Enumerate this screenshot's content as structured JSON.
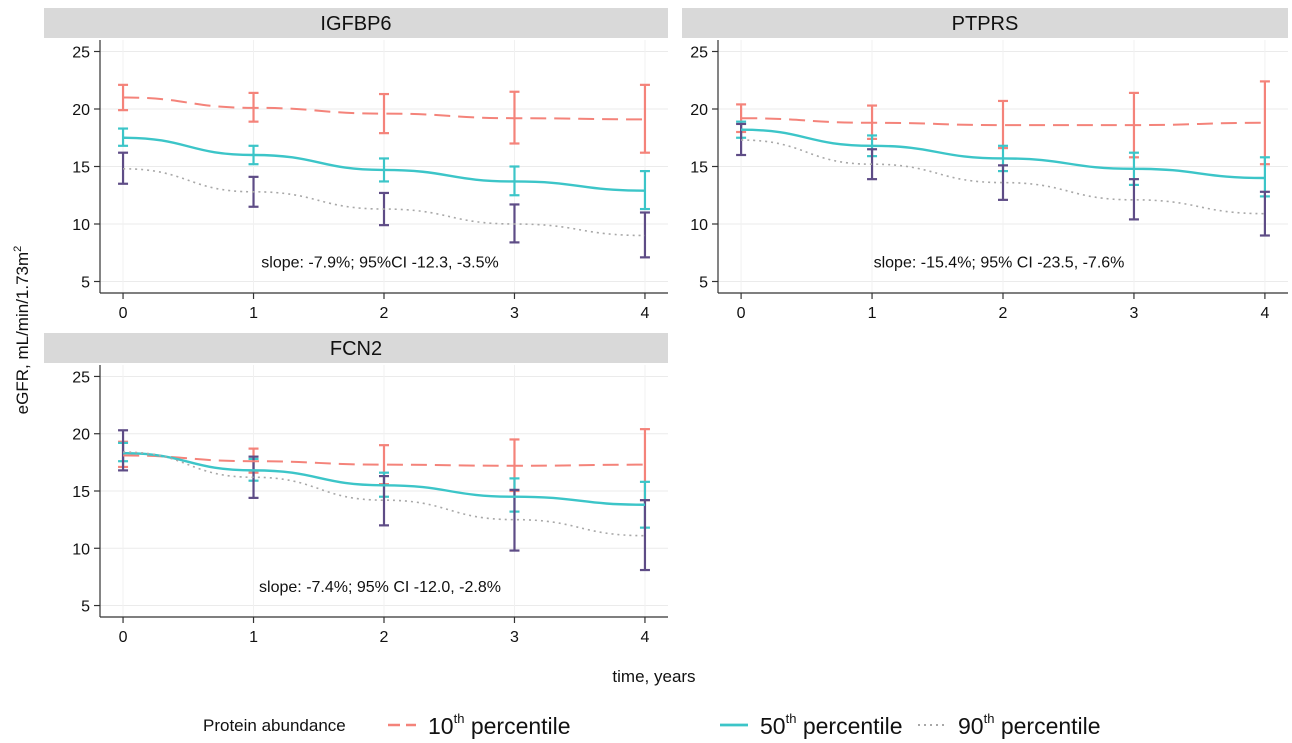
{
  "chart_data": {
    "type": "line",
    "ylabel_main": "eGFR, mL/min/1.73m",
    "ylabel_sup": "2",
    "xlabel": "time, years",
    "x": [
      0,
      1,
      2,
      3,
      4
    ],
    "xticks": [
      "0",
      "1",
      "2",
      "3",
      "4"
    ],
    "yticks": [
      "5",
      "10",
      "15",
      "20",
      "25"
    ],
    "ylim": [
      4,
      26
    ],
    "xlim": [
      -0.1,
      4.1
    ],
    "grid": true,
    "legend": {
      "title": "Protein abundance",
      "placement": "bottom",
      "entries": [
        {
          "num": "10",
          "sup": "th",
          "text": " percentile",
          "color": "#F4837A",
          "style": "dashed"
        },
        {
          "num": "50",
          "sup": "th",
          "text": " percentile",
          "color": "#3CC5C8",
          "style": "solid"
        },
        {
          "num": "90",
          "sup": "th",
          "text": " percentile",
          "color": "#A8A8A8",
          "style": "dotted"
        }
      ]
    },
    "ci_colors": {
      "p10": "#F4837A",
      "p50": "#3CC5C8",
      "p90": "#5E4C86"
    },
    "panels": [
      {
        "title": "IGFBP6",
        "annotation": "slope: -7.9%; 95%CI -12.3, -3.5%",
        "series": [
          {
            "name": "10th percentile",
            "key": "p10",
            "values": [
              21.0,
              20.1,
              19.6,
              19.2,
              19.1
            ],
            "lower": [
              19.9,
              18.9,
              17.9,
              17.0,
              16.2
            ],
            "upper": [
              22.1,
              21.4,
              21.3,
              21.5,
              22.1
            ]
          },
          {
            "name": "50th percentile",
            "key": "p50",
            "values": [
              17.5,
              16.0,
              14.7,
              13.7,
              12.9
            ],
            "lower": [
              16.8,
              15.2,
              13.7,
              12.5,
              11.3
            ],
            "upper": [
              18.3,
              16.8,
              15.7,
              15.0,
              14.6
            ]
          },
          {
            "name": "90th percentile",
            "key": "p90",
            "values": [
              14.8,
              12.8,
              11.3,
              10.0,
              9.0
            ],
            "lower": [
              13.5,
              11.5,
              9.9,
              8.4,
              7.1
            ],
            "upper": [
              16.2,
              14.1,
              12.7,
              11.7,
              11.0
            ]
          }
        ]
      },
      {
        "title": "PTPRS",
        "annotation": "slope: -15.4%; 95% CI -23.5, -7.6%",
        "series": [
          {
            "name": "10th percentile",
            "key": "p10",
            "values": [
              19.2,
              18.8,
              18.6,
              18.6,
              18.8
            ],
            "lower": [
              18.0,
              17.4,
              16.6,
              15.8,
              15.2
            ],
            "upper": [
              20.4,
              20.3,
              20.7,
              21.4,
              22.4
            ]
          },
          {
            "name": "50th percentile",
            "key": "p50",
            "values": [
              18.2,
              16.8,
              15.7,
              14.8,
              14.0
            ],
            "lower": [
              17.5,
              15.9,
              14.6,
              13.4,
              12.4
            ],
            "upper": [
              18.9,
              17.7,
              16.8,
              16.2,
              15.8
            ]
          },
          {
            "name": "90th percentile",
            "key": "p90",
            "values": [
              17.3,
              15.2,
              13.6,
              12.1,
              10.9
            ],
            "lower": [
              16.0,
              13.9,
              12.1,
              10.4,
              9.0
            ],
            "upper": [
              18.7,
              16.5,
              15.1,
              13.9,
              12.8
            ]
          }
        ]
      },
      {
        "title": "FCN2",
        "annotation": "slope: -7.4%; 95% CI -12.0, -2.8%",
        "series": [
          {
            "name": "10th percentile",
            "key": "p10",
            "values": [
              18.1,
              17.6,
              17.3,
              17.2,
              17.3
            ],
            "lower": [
              17.1,
              16.6,
              15.6,
              15.0,
              14.2
            ],
            "upper": [
              19.3,
              18.7,
              19.0,
              19.5,
              20.4
            ]
          },
          {
            "name": "50th percentile",
            "key": "p50",
            "values": [
              18.3,
              16.8,
              15.5,
              14.5,
              13.8
            ],
            "lower": [
              17.6,
              15.9,
              14.5,
              13.2,
              11.8
            ],
            "upper": [
              19.2,
              17.8,
              16.6,
              16.1,
              15.8
            ]
          },
          {
            "name": "90th percentile",
            "key": "p90",
            "values": [
              18.4,
              16.2,
              14.2,
              12.5,
              11.1
            ],
            "lower": [
              16.8,
              14.4,
              12.0,
              9.8,
              8.1
            ],
            "upper": [
              20.3,
              18.0,
              16.3,
              15.1,
              14.2
            ]
          }
        ]
      }
    ]
  }
}
